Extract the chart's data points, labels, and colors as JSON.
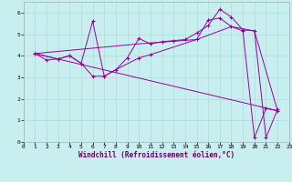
{
  "xlabel": "Windchill (Refroidissement éolien,°C)",
  "background_color": "#c8eef0",
  "line_color": "#990099",
  "xlim": [
    0,
    23
  ],
  "ylim": [
    0,
    6.5
  ],
  "xticks": [
    0,
    1,
    2,
    3,
    4,
    5,
    6,
    7,
    8,
    9,
    10,
    11,
    12,
    13,
    14,
    15,
    16,
    17,
    18,
    19,
    20,
    21,
    22,
    23
  ],
  "yticks": [
    0,
    1,
    2,
    3,
    4,
    5,
    6
  ],
  "line1_x": [
    1,
    2,
    3,
    4,
    5,
    6,
    7,
    8,
    9,
    10,
    11,
    12,
    13,
    14,
    15,
    16,
    17,
    18,
    19,
    20,
    21,
    22
  ],
  "line1_y": [
    4.1,
    3.8,
    3.85,
    4.0,
    3.65,
    3.05,
    3.05,
    3.35,
    3.9,
    4.8,
    4.55,
    4.65,
    4.7,
    4.75,
    5.05,
    5.4,
    6.15,
    5.8,
    5.2,
    5.15,
    0.2,
    1.5
  ],
  "line2_x": [
    1,
    3,
    4,
    5,
    6,
    7,
    8,
    10,
    11,
    15,
    16,
    17,
    18,
    19,
    20,
    21,
    22
  ],
  "line2_y": [
    4.1,
    3.85,
    4.0,
    3.65,
    5.6,
    3.05,
    3.35,
    3.9,
    4.05,
    4.75,
    5.65,
    5.75,
    5.35,
    5.15,
    0.2,
    1.55,
    1.45
  ],
  "line3_x": [
    1,
    22
  ],
  "line3_y": [
    4.1,
    1.45
  ],
  "line4_x": [
    1,
    10,
    15,
    18,
    20,
    22
  ],
  "line4_y": [
    4.1,
    4.55,
    4.75,
    5.35,
    5.15,
    1.45
  ],
  "xlabel_color": "#660066",
  "xlabel_fontsize": 5.5,
  "tick_fontsize": 4.5,
  "grid_color": "#aadddd",
  "spine_color": "#aaaaaa"
}
